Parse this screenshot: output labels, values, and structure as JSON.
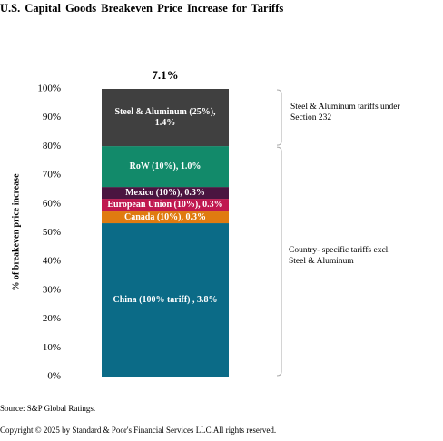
{
  "chart_data": {
    "type": "stacked_bar",
    "title": "U.S. Capital Goods Breakeven Price Increase for Tariffs",
    "y_label": "% of breakeven price increase",
    "categories": [
      null
    ],
    "series": [
      {
        "name": "China (100% tariff) , 3.8%",
        "color": "#0b6b87",
        "values": [
          53.3
        ]
      },
      {
        "name": "Canada (10%), 0.3%",
        "color": "#e07b10",
        "values": [
          4.1
        ]
      },
      {
        "name": "European Union (10%), 0.3%",
        "color": "#c0174f",
        "values": [
          4.4
        ]
      },
      {
        "name": "Mexico (10%), 0.3%",
        "color": "#4a1540",
        "values": [
          4.1
        ]
      },
      {
        "name": "RoW (10%), 1.0%",
        "color": "#128a6a",
        "values": [
          14.2
        ]
      },
      {
        "name": "Steel & Aluminum (25%), 1.4%",
        "color": "#404040",
        "values": [
          19.9
        ]
      }
    ],
    "ylim": [
      0,
      100
    ],
    "yticks": [
      {
        "value": 0,
        "label": "0%"
      },
      {
        "value": 10,
        "label": "10%"
      },
      {
        "value": 20,
        "label": "20%"
      },
      {
        "value": 30,
        "label": "30%"
      },
      {
        "value": 40,
        "label": "40%"
      },
      {
        "value": 50,
        "label": "50%"
      },
      {
        "value": 60,
        "label": "60%"
      },
      {
        "value": 70,
        "label": "70%"
      },
      {
        "value": 80,
        "label": "80%"
      },
      {
        "value": 90,
        "label": "90%"
      },
      {
        "value": 100,
        "label": "100%"
      }
    ],
    "total_label": "7.1%",
    "annotations": [
      "Steel & Aluminum tariffs under Section 232",
      "Country- specific tariffs excl. Steel & Aluminum"
    ],
    "source": "Source: S&P Global Ratings.",
    "copyright": "Copyright © 2025 by Standard & Poor's Financial Services LLC.All rights reserved."
  }
}
